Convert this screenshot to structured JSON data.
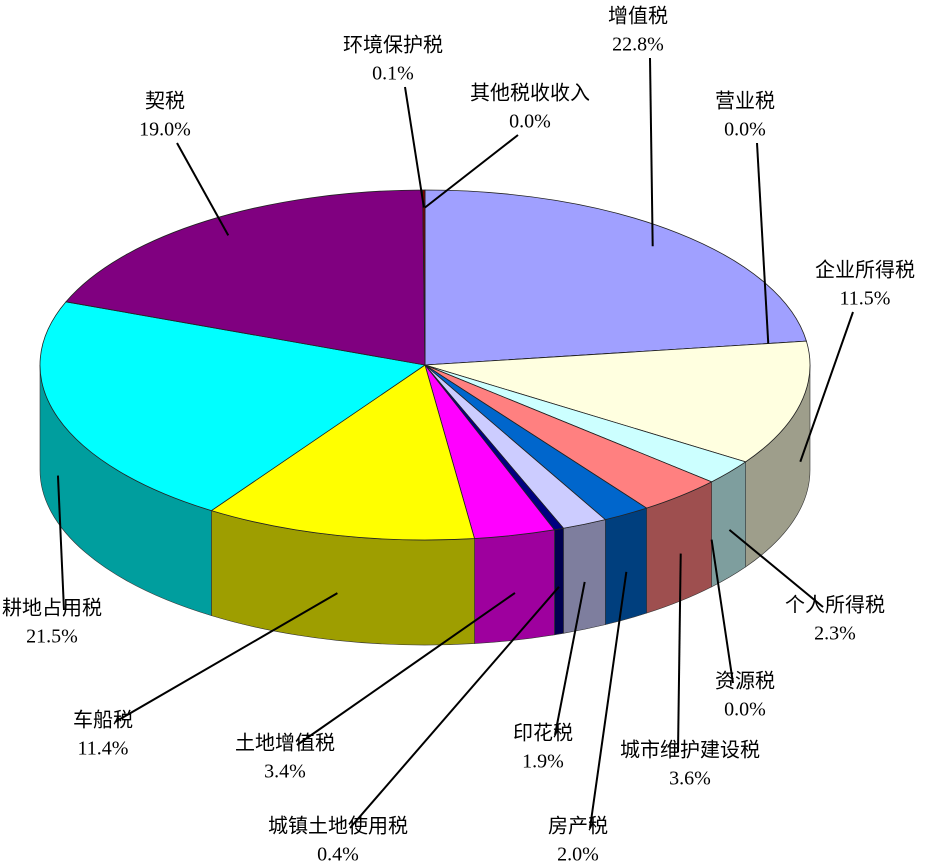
{
  "chart_data": {
    "type": "pie",
    "categories": [
      "增值税",
      "营业税",
      "企业所得税",
      "个人所得税",
      "资源税",
      "城市维护建设税",
      "房产税",
      "印花税",
      "城镇土地使用税",
      "土地增值税",
      "车船税",
      "耕地占用税",
      "契税",
      "环境保护税",
      "其他税收收入"
    ],
    "values": [
      22.8,
      0.0,
      11.5,
      2.3,
      0.0,
      3.6,
      2.0,
      1.9,
      0.4,
      3.4,
      11.4,
      21.5,
      19.0,
      0.1,
      0.0
    ],
    "value_labels": [
      "22.8%",
      "0.0%",
      "11.5%",
      "2.3%",
      "0.0%",
      "3.6%",
      "2.0%",
      "1.9%",
      "0.4%",
      "3.4%",
      "11.4%",
      "21.5%",
      "19.0%",
      "0.1%",
      "0.0%"
    ],
    "colors": [
      "#a0a0ff",
      "#993366",
      "#ffffe0",
      "#ccffff",
      "#660066",
      "#ff8080",
      "#0066cc",
      "#ccccff",
      "#000080",
      "#ff00ff",
      "#ffff00",
      "#00ffff",
      "#800080",
      "#7f0000",
      "#008080"
    ]
  }
}
